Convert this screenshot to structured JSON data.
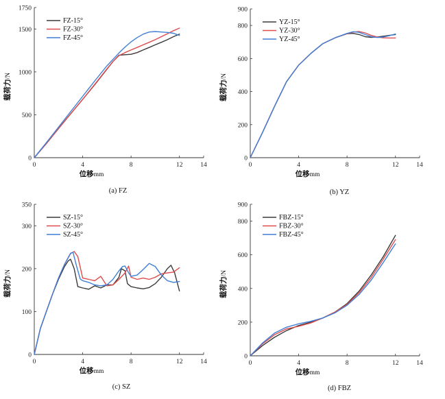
{
  "chart_data": [
    {
      "type": "line",
      "caption": "(a) FZ",
      "xlabel": "位移",
      "xunit": "mm",
      "ylabel": "载荷力",
      "yunit": "N",
      "xlim": [
        0,
        14
      ],
      "ylim": [
        0,
        1750
      ],
      "xticks": [
        0,
        4,
        8,
        12,
        14
      ],
      "yticks": [
        0,
        500,
        1000,
        1500,
        1750
      ],
      "legend": "top-left",
      "series": [
        {
          "name": "FZ-15°",
          "color": "#3a3a3a",
          "x": [
            0,
            1,
            2,
            3,
            4,
            5,
            6,
            6.5,
            7,
            7.5,
            8,
            8.5,
            9,
            9.5,
            10,
            10.5,
            11,
            11.5,
            12
          ],
          "y": [
            0,
            165,
            340,
            510,
            680,
            850,
            1030,
            1120,
            1195,
            1200,
            1205,
            1225,
            1255,
            1285,
            1315,
            1345,
            1375,
            1410,
            1440
          ]
        },
        {
          "name": "FZ-30°",
          "color": "#e04a4a",
          "x": [
            0,
            1,
            2,
            3,
            4,
            5,
            6,
            6.5,
            7,
            7.5,
            8,
            8.5,
            9,
            9.5,
            10,
            10.5,
            11,
            11.5,
            12
          ],
          "y": [
            0,
            165,
            340,
            510,
            680,
            855,
            1035,
            1120,
            1190,
            1225,
            1255,
            1285,
            1315,
            1345,
            1375,
            1410,
            1445,
            1480,
            1510
          ]
        },
        {
          "name": "FZ-45°",
          "color": "#3f7fd6",
          "x": [
            0,
            1,
            2,
            3,
            4,
            5,
            6,
            7,
            7.5,
            8,
            8.5,
            9,
            9.5,
            10,
            10.5,
            11,
            11.5,
            12
          ],
          "y": [
            0,
            175,
            355,
            535,
            715,
            895,
            1070,
            1220,
            1290,
            1350,
            1400,
            1440,
            1465,
            1470,
            1465,
            1460,
            1450,
            1425
          ]
        }
      ]
    },
    {
      "type": "line",
      "caption": "(b) YZ",
      "xlabel": "位移",
      "xunit": "mm",
      "ylabel": "载荷力",
      "yunit": "N",
      "xlim": [
        0,
        14
      ],
      "ylim": [
        0,
        900
      ],
      "xticks": [
        0,
        4,
        8,
        12,
        14
      ],
      "yticks": [
        0,
        200,
        400,
        600,
        800,
        900
      ],
      "legend": "top-left",
      "series": [
        {
          "name": "YZ-15°",
          "color": "#3a3a3a",
          "x": [
            0,
            1,
            2,
            3,
            4,
            5,
            6,
            7,
            8,
            8.5,
            9,
            9.5,
            10,
            10.5,
            11,
            11.5,
            12
          ],
          "y": [
            0,
            150,
            310,
            460,
            560,
            630,
            690,
            725,
            750,
            752,
            745,
            732,
            728,
            730,
            735,
            740,
            745
          ]
        },
        {
          "name": "YZ-30°",
          "color": "#e04a4a",
          "x": [
            0,
            1,
            2,
            3,
            4,
            5,
            6,
            7,
            8,
            8.5,
            9,
            9.5,
            10,
            10.5,
            11,
            11.5,
            12
          ],
          "y": [
            0,
            150,
            310,
            460,
            560,
            630,
            690,
            725,
            750,
            760,
            763,
            755,
            740,
            730,
            725,
            724,
            724
          ]
        },
        {
          "name": "YZ-45°",
          "color": "#3f7fd6",
          "x": [
            0,
            1,
            2,
            3,
            4,
            5,
            6,
            7,
            8,
            8.5,
            9,
            9.5,
            10,
            10.5,
            11,
            11.5,
            12
          ],
          "y": [
            0,
            150,
            310,
            460,
            560,
            630,
            690,
            725,
            752,
            762,
            758,
            745,
            732,
            727,
            730,
            738,
            748
          ]
        }
      ]
    },
    {
      "type": "line",
      "caption": "(c) SZ",
      "xlabel": "位移",
      "xunit": "mm",
      "ylabel": "载荷力",
      "yunit": "N",
      "xlim": [
        0,
        14
      ],
      "ylim": [
        0,
        350
      ],
      "xticks": [
        0,
        4,
        8,
        12,
        14
      ],
      "yticks": [
        0,
        100,
        200,
        300,
        350
      ],
      "legend": "top-left",
      "series": [
        {
          "name": "SZ-15°",
          "color": "#3a3a3a",
          "x": [
            0,
            0.5,
            1,
            1.5,
            2,
            2.5,
            2.8,
            3.0,
            3.3,
            3.6,
            4.0,
            4.5,
            5.0,
            5.5,
            6.0,
            6.5,
            7.0,
            7.2,
            7.5,
            7.7,
            8.0,
            8.5,
            9.0,
            9.5,
            10.0,
            10.5,
            11.0,
            11.3,
            11.6,
            12.0
          ],
          "y": [
            0,
            60,
            100,
            140,
            175,
            205,
            218,
            222,
            200,
            158,
            155,
            152,
            160,
            155,
            162,
            162,
            180,
            200,
            195,
            165,
            158,
            155,
            153,
            156,
            165,
            180,
            200,
            208,
            190,
            148
          ]
        },
        {
          "name": "SZ-30°",
          "color": "#e04a4a",
          "x": [
            0,
            0.5,
            1,
            1.5,
            2,
            2.5,
            3.0,
            3.3,
            3.6,
            4.0,
            4.5,
            5.0,
            5.5,
            6.0,
            6.5,
            7.0,
            7.5,
            7.8,
            8.0,
            8.5,
            9.0,
            9.5,
            10.0,
            10.5,
            11.0,
            11.5,
            12.0
          ],
          "y": [
            0,
            60,
            100,
            140,
            178,
            210,
            235,
            240,
            228,
            178,
            175,
            172,
            182,
            160,
            162,
            175,
            190,
            206,
            180,
            175,
            178,
            175,
            180,
            188,
            190,
            192,
            202
          ]
        },
        {
          "name": "SZ-45°",
          "color": "#3f7fd6",
          "x": [
            0,
            0.5,
            1,
            1.5,
            2,
            2.5,
            3.0,
            3.2,
            3.5,
            3.8,
            4.0,
            4.5,
            5.0,
            5.5,
            6.0,
            6.5,
            7.0,
            7.3,
            7.5,
            7.8,
            8.0,
            8.5,
            9.0,
            9.5,
            10.0,
            10.5,
            11.0,
            11.5,
            12.0
          ],
          "y": [
            0,
            60,
            100,
            140,
            178,
            210,
            236,
            238,
            205,
            176,
            172,
            168,
            162,
            160,
            162,
            175,
            195,
            205,
            206,
            190,
            182,
            185,
            198,
            212,
            205,
            185,
            172,
            168,
            170
          ]
        }
      ]
    },
    {
      "type": "line",
      "caption": "(d) FBZ",
      "xlabel": "位移",
      "xunit": "mm",
      "ylabel": "载荷力",
      "yunit": "N",
      "xlim": [
        0,
        14
      ],
      "ylim": [
        0,
        900
      ],
      "xticks": [
        0,
        4,
        8,
        12,
        14
      ],
      "yticks": [
        0,
        200,
        400,
        600,
        800,
        900
      ],
      "legend": "top-left",
      "series": [
        {
          "name": "FBZ-15°",
          "color": "#3a3a3a",
          "x": [
            0,
            1,
            2,
            3,
            4,
            5,
            6,
            7,
            8,
            9,
            10,
            11,
            12
          ],
          "y": [
            0,
            60,
            110,
            150,
            180,
            200,
            225,
            260,
            310,
            385,
            480,
            590,
            715
          ]
        },
        {
          "name": "FBZ-30°",
          "color": "#e04a4a",
          "x": [
            0,
            1,
            2,
            3,
            4,
            5,
            6,
            7,
            8,
            9,
            10,
            11,
            12
          ],
          "y": [
            0,
            70,
            125,
            160,
            175,
            195,
            225,
            260,
            305,
            375,
            465,
            575,
            690
          ]
        },
        {
          "name": "FBZ-45°",
          "color": "#3f7fd6",
          "x": [
            0,
            1,
            2,
            3,
            4,
            5,
            6,
            7,
            8,
            9,
            10,
            11,
            12
          ],
          "y": [
            0,
            75,
            135,
            170,
            190,
            205,
            225,
            255,
            300,
            365,
            450,
            555,
            665
          ]
        }
      ]
    }
  ]
}
